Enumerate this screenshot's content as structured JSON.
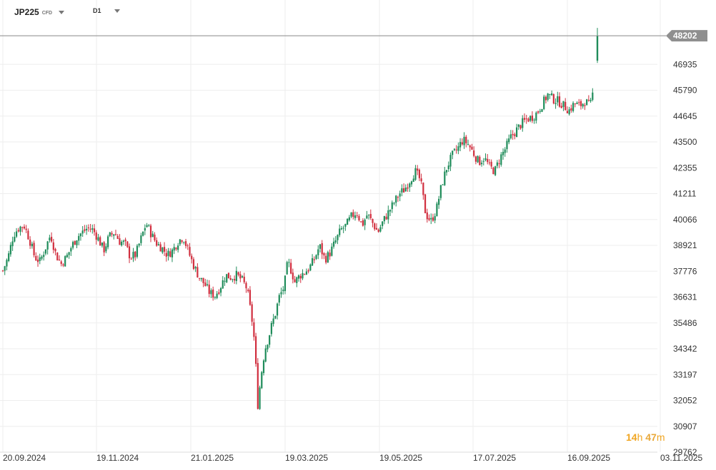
{
  "toolbar": {
    "symbol": "JP225",
    "symbol_sub": "CFD",
    "timeframe": "D1"
  },
  "timer": {
    "hours": "14",
    "h_unit": "h",
    "minutes": "47",
    "m_unit": "m"
  },
  "colors": {
    "up": "#1f8c5a",
    "down": "#d12f3f",
    "grid": "#eeeeee",
    "price_line": "#888888",
    "axis_text": "#333333",
    "price_tag": "#8f8f8f"
  },
  "chart_data": {
    "type": "candlestick",
    "symbol": "JP225",
    "timeframe": "D1",
    "y_ticks": [
      29762,
      30907,
      32052,
      33197,
      34342,
      35486,
      36631,
      37776,
      38921,
      40066,
      41211,
      42355,
      43500,
      44645,
      45790,
      46935
    ],
    "x_ticks": [
      "20.09.2024",
      "19.11.2024",
      "21.01.2025",
      "19.03.2025",
      "19.05.2025",
      "17.07.2025",
      "16.09.2025",
      "03.11.2025"
    ],
    "current_price": 48202,
    "ylim": [
      29762,
      48202
    ],
    "grid": true,
    "series_close": [
      [
        0,
        37800
      ],
      [
        6,
        38400
      ],
      [
        12,
        39400
      ],
      [
        18,
        39700
      ],
      [
        24,
        39800
      ],
      [
        30,
        39200
      ],
      [
        36,
        38400
      ],
      [
        42,
        38200
      ],
      [
        48,
        38800
      ],
      [
        54,
        39400
      ],
      [
        60,
        38500
      ],
      [
        66,
        38100
      ],
      [
        72,
        38400
      ],
      [
        78,
        38900
      ],
      [
        84,
        39300
      ],
      [
        90,
        39500
      ],
      [
        96,
        39700
      ],
      [
        102,
        39600
      ],
      [
        108,
        39200
      ],
      [
        114,
        38700
      ],
      [
        120,
        39300
      ],
      [
        126,
        39500
      ],
      [
        132,
        39100
      ],
      [
        138,
        39000
      ],
      [
        144,
        38400
      ],
      [
        150,
        38500
      ],
      [
        156,
        39200
      ],
      [
        162,
        39900
      ],
      [
        168,
        39400
      ],
      [
        174,
        39000
      ],
      [
        180,
        38800
      ],
      [
        186,
        38500
      ],
      [
        192,
        38700
      ],
      [
        198,
        39100
      ],
      [
        204,
        39300
      ],
      [
        210,
        38600
      ],
      [
        216,
        38000
      ],
      [
        222,
        37500
      ],
      [
        228,
        37200
      ],
      [
        234,
        36800
      ],
      [
        240,
        36700
      ],
      [
        246,
        37100
      ],
      [
        252,
        37600
      ],
      [
        258,
        37500
      ],
      [
        264,
        37600
      ],
      [
        270,
        37400
      ],
      [
        276,
        37000
      ],
      [
        282,
        35500
      ],
      [
        285,
        34400
      ],
      [
        288,
        31800
      ],
      [
        292,
        33200
      ],
      [
        296,
        34300
      ],
      [
        300,
        34800
      ],
      [
        304,
        35400
      ],
      [
        308,
        35900
      ],
      [
        312,
        36600
      ],
      [
        318,
        37100
      ],
      [
        322,
        38200
      ],
      [
        326,
        37800
      ],
      [
        330,
        37300
      ],
      [
        336,
        37600
      ],
      [
        340,
        37700
      ],
      [
        346,
        37900
      ],
      [
        352,
        38300
      ],
      [
        358,
        38900
      ],
      [
        364,
        38300
      ],
      [
        370,
        38600
      ],
      [
        376,
        39100
      ],
      [
        382,
        39600
      ],
      [
        388,
        39800
      ],
      [
        394,
        40200
      ],
      [
        400,
        40400
      ],
      [
        406,
        39800
      ],
      [
        412,
        40300
      ],
      [
        418,
        39900
      ],
      [
        424,
        39500
      ],
      [
        430,
        40000
      ],
      [
        436,
        40400
      ],
      [
        442,
        40800
      ],
      [
        448,
        41200
      ],
      [
        454,
        41400
      ],
      [
        460,
        41800
      ],
      [
        466,
        42200
      ],
      [
        472,
        41800
      ],
      [
        478,
        40300
      ],
      [
        484,
        40000
      ],
      [
        490,
        40500
      ],
      [
        496,
        41600
      ],
      [
        502,
        42400
      ],
      [
        508,
        42900
      ],
      [
        514,
        43200
      ],
      [
        520,
        43600
      ],
      [
        526,
        43400
      ],
      [
        532,
        43000
      ],
      [
        538,
        42600
      ],
      [
        544,
        42800
      ],
      [
        550,
        42400
      ],
      [
        556,
        42200
      ],
      [
        562,
        42800
      ],
      [
        568,
        43200
      ],
      [
        574,
        43700
      ],
      [
        580,
        44000
      ],
      [
        586,
        44300
      ],
      [
        592,
        44500
      ],
      [
        598,
        44600
      ],
      [
        604,
        44800
      ],
      [
        610,
        45200
      ],
      [
        616,
        45600
      ],
      [
        622,
        45400
      ],
      [
        628,
        45300
      ],
      [
        634,
        45100
      ],
      [
        640,
        44900
      ],
      [
        646,
        45200
      ],
      [
        652,
        45100
      ],
      [
        658,
        45300
      ],
      [
        664,
        45100
      ],
      [
        668,
        45900
      ],
      [
        672,
        47800
      ]
    ],
    "x_range": [
      0,
      672
    ]
  }
}
